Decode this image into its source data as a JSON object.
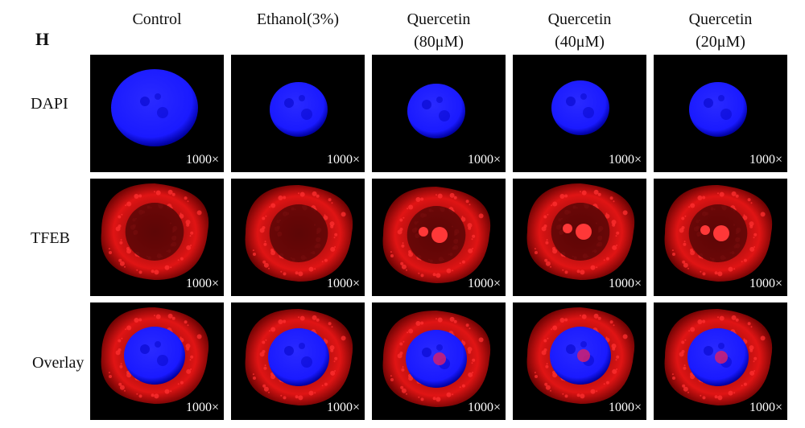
{
  "panel_label": "H",
  "columns": [
    {
      "line1": "Control",
      "line2": ""
    },
    {
      "line1": "Ethanol(3%)",
      "line2": ""
    },
    {
      "line1": "Quercetin",
      "line2": "(80μM)"
    },
    {
      "line1": "Quercetin",
      "line2": "(40μM)"
    },
    {
      "line1": "Quercetin",
      "line2": "(20μM)"
    }
  ],
  "rows": [
    {
      "label": "DAPI",
      "stain": "nuclear-blue"
    },
    {
      "label": "TFEB",
      "stain": "cytoplasmic-red"
    },
    {
      "label": "Overlay",
      "stain": "merged-blue-red"
    }
  ],
  "magnification": "1000×",
  "colors": {
    "dapi": "#1a1aff",
    "tfeb": "#e01414",
    "background": "#000000"
  }
}
